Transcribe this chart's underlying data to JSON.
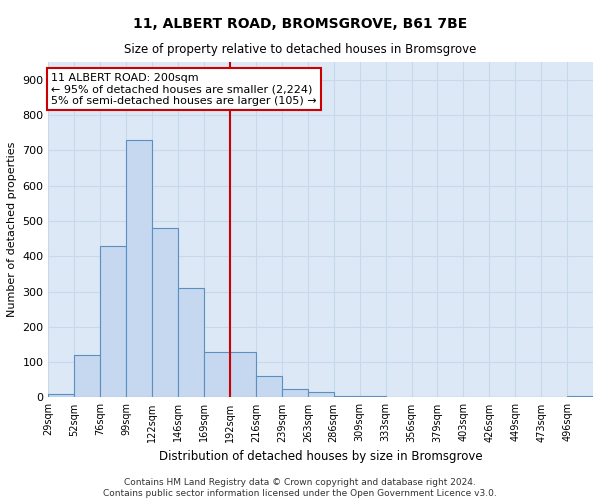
{
  "title": "11, ALBERT ROAD, BROMSGROVE, B61 7BE",
  "subtitle": "Size of property relative to detached houses in Bromsgrove",
  "xlabel": "Distribution of detached houses by size in Bromsgrove",
  "ylabel": "Number of detached properties",
  "footer_line1": "Contains HM Land Registry data © Crown copyright and database right 2024.",
  "footer_line2": "Contains public sector information licensed under the Open Government Licence v3.0.",
  "bin_labels": [
    "29sqm",
    "52sqm",
    "76sqm",
    "99sqm",
    "122sqm",
    "146sqm",
    "169sqm",
    "192sqm",
    "216sqm",
    "239sqm",
    "263sqm",
    "286sqm",
    "309sqm",
    "333sqm",
    "356sqm",
    "379sqm",
    "403sqm",
    "426sqm",
    "449sqm",
    "473sqm",
    "496sqm"
  ],
  "bar_values": [
    10,
    120,
    430,
    730,
    480,
    310,
    130,
    130,
    60,
    25,
    15,
    5,
    3,
    0,
    0,
    0,
    0,
    0,
    0,
    0,
    3
  ],
  "bar_color": "#c5d8f0",
  "bar_edge_color": "#5a8fbf",
  "vline_x": 7.0,
  "vline_color": "#cc0000",
  "annotation_text": "11 ALBERT ROAD: 200sqm\n← 95% of detached houses are smaller (2,224)\n5% of semi-detached houses are larger (105) →",
  "annotation_box_facecolor": "#ffffff",
  "annotation_box_edgecolor": "#cc0000",
  "ylim": [
    0,
    950
  ],
  "yticks": [
    0,
    100,
    200,
    300,
    400,
    500,
    600,
    700,
    800,
    900
  ],
  "background_color": "#dce8f5",
  "grid_color": "#c8d8ec",
  "title_fontsize": 10,
  "subtitle_fontsize": 8.5,
  "axis_label_fontsize": 8.5,
  "ylabel_fontsize": 8,
  "tick_fontsize": 8,
  "xtick_fontsize": 7,
  "annotation_fontsize": 8,
  "footer_fontsize": 6.5
}
